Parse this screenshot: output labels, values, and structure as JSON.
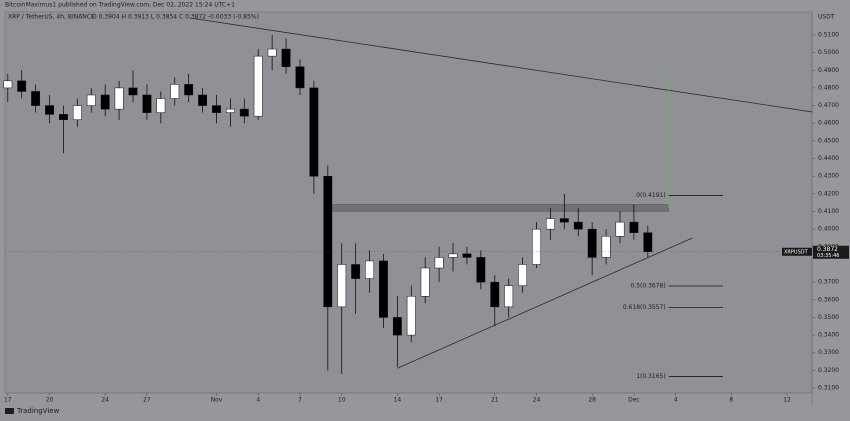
{
  "header": {
    "publisher": "BitcoinMaximus1 published on TradingView.com, Dec 02, 2022 15:24 UTC+1",
    "symbol": "XRP / TetherUS, 4h, BINANCE",
    "ohlc": "O 0.3904 H 0.3913 L 0.3854 C 0.3872 -0.0033 (-0.85%)"
  },
  "footer": {
    "logo": "TradingView"
  },
  "chart_data": {
    "type": "candlestick",
    "y_unit": "USDT",
    "x": [
      0,
      1,
      2,
      3,
      4,
      5,
      6,
      7,
      8,
      9,
      10,
      11,
      12,
      13,
      14,
      15,
      16,
      17,
      18,
      19,
      20,
      21,
      22,
      23,
      24,
      25,
      26,
      27,
      28,
      29,
      30,
      31,
      32,
      33,
      34,
      35,
      36,
      37,
      38,
      39,
      40,
      41,
      42,
      43,
      44,
      45,
      46
    ],
    "open": [
      0.48,
      0.484,
      0.478,
      0.47,
      0.465,
      0.462,
      0.47,
      0.476,
      0.468,
      0.48,
      0.476,
      0.466,
      0.474,
      0.482,
      0.476,
      0.47,
      0.466,
      0.468,
      0.464,
      0.498,
      0.502,
      0.492,
      0.48,
      0.43,
      0.356,
      0.38,
      0.372,
      0.382,
      0.35,
      0.34,
      0.362,
      0.378,
      0.384,
      0.386,
      0.384,
      0.37,
      0.356,
      0.368,
      0.38,
      0.4,
      0.406,
      0.404,
      0.4,
      0.384,
      0.396,
      0.404,
      0.398
    ],
    "high": [
      0.488,
      0.49,
      0.482,
      0.476,
      0.47,
      0.474,
      0.48,
      0.482,
      0.484,
      0.49,
      0.482,
      0.478,
      0.486,
      0.488,
      0.48,
      0.476,
      0.474,
      0.474,
      0.502,
      0.51,
      0.508,
      0.496,
      0.484,
      0.436,
      0.392,
      0.392,
      0.388,
      0.386,
      0.362,
      0.368,
      0.384,
      0.39,
      0.392,
      0.39,
      0.388,
      0.374,
      0.372,
      0.384,
      0.404,
      0.412,
      0.42,
      0.412,
      0.404,
      0.4,
      0.41,
      0.414,
      0.402
    ],
    "low": [
      0.472,
      0.474,
      0.466,
      0.46,
      0.443,
      0.458,
      0.466,
      0.464,
      0.462,
      0.472,
      0.462,
      0.46,
      0.47,
      0.472,
      0.466,
      0.46,
      0.458,
      0.46,
      0.462,
      0.49,
      0.488,
      0.476,
      0.42,
      0.32,
      0.318,
      0.352,
      0.364,
      0.344,
      0.322,
      0.336,
      0.358,
      0.37,
      0.376,
      0.38,
      0.366,
      0.345,
      0.35,
      0.364,
      0.378,
      0.394,
      0.4,
      0.396,
      0.374,
      0.38,
      0.392,
      0.394,
      0.384
    ],
    "close": [
      0.484,
      0.478,
      0.47,
      0.465,
      0.462,
      0.47,
      0.476,
      0.468,
      0.48,
      0.476,
      0.466,
      0.474,
      0.482,
      0.476,
      0.47,
      0.466,
      0.468,
      0.464,
      0.498,
      0.502,
      0.492,
      0.48,
      0.43,
      0.356,
      0.38,
      0.372,
      0.382,
      0.35,
      0.34,
      0.362,
      0.378,
      0.384,
      0.386,
      0.384,
      0.37,
      0.356,
      0.368,
      0.38,
      0.4,
      0.406,
      0.404,
      0.4,
      0.384,
      0.396,
      0.404,
      0.398,
      0.3872
    ],
    "up_color": "#ffffff",
    "down_color": "#000000",
    "xlim": [
      -0.2,
      57.8
    ],
    "xticks": [
      {
        "value": 0,
        "label": "17"
      },
      {
        "value": 3,
        "label": "20"
      },
      {
        "value": 7,
        "label": "24"
      },
      {
        "value": 10,
        "label": "27"
      },
      {
        "value": 15,
        "label": "Nov"
      },
      {
        "value": 18,
        "label": "4"
      },
      {
        "value": 21,
        "label": "7"
      },
      {
        "value": 24,
        "label": "10"
      },
      {
        "value": 28,
        "label": "14"
      },
      {
        "value": 31,
        "label": "17"
      },
      {
        "value": 35,
        "label": "21"
      },
      {
        "value": 38,
        "label": "24"
      },
      {
        "value": 42,
        "label": "28"
      },
      {
        "value": 45,
        "label": "Dec"
      },
      {
        "value": 48,
        "label": "4"
      },
      {
        "value": 52,
        "label": "8"
      },
      {
        "value": 56,
        "label": "12"
      }
    ],
    "ylim": [
      0.3072,
      0.523
    ],
    "yticks": [
      {
        "value": 0.51,
        "label": "0.5100"
      },
      {
        "value": 0.5,
        "label": "0.5000"
      },
      {
        "value": 0.49,
        "label": "0.4900"
      },
      {
        "value": 0.48,
        "label": "0.4800"
      },
      {
        "value": 0.47,
        "label": "0.4700"
      },
      {
        "value": 0.46,
        "label": "0.4600"
      },
      {
        "value": 0.45,
        "label": "0.4500"
      },
      {
        "value": 0.44,
        "label": "0.4400"
      },
      {
        "value": 0.43,
        "label": "0.4300"
      },
      {
        "value": 0.42,
        "label": "0.4200"
      },
      {
        "value": 0.41,
        "label": "0.4100"
      },
      {
        "value": 0.4,
        "label": "0.4000"
      },
      {
        "value": 0.39,
        "label": "0.3900"
      },
      {
        "value": 0.37,
        "label": "0.3700"
      },
      {
        "value": 0.36,
        "label": "0.3600"
      },
      {
        "value": 0.35,
        "label": "0.3500"
      },
      {
        "value": 0.34,
        "label": "0.3400"
      },
      {
        "value": 0.33,
        "label": "0.3300"
      },
      {
        "value": 0.32,
        "label": "0.3200"
      },
      {
        "value": 0.31,
        "label": "0.3100"
      }
    ],
    "last_price": {
      "symbol": "XRPUSDT",
      "value": 0.3872,
      "label": "0.3872",
      "countdown": "03:35:46",
      "color": "#1a1a1a"
    },
    "trendlines": [
      {
        "x": [
          13.1,
          57.8
        ],
        "y": [
          0.5196,
          0.4664
        ],
        "color": "#2b2b2b"
      },
      {
        "x": [
          28,
          49.2
        ],
        "y": [
          0.3212,
          0.395
        ],
        "color": "#2b2b2b"
      }
    ],
    "zone": {
      "x": [
        23,
        47.5
      ],
      "y": [
        0.41,
        0.414
      ],
      "color": "#6f7176"
    },
    "target": {
      "x": 47.5,
      "y": [
        0.412,
        0.488
      ],
      "color": "#57c23a"
    },
    "fib": {
      "x": [
        47.5,
        51.4
      ],
      "color": "#1a1a1a",
      "levels": [
        {
          "value": 0.4191,
          "label": "0(0.4191)"
        },
        {
          "value": 0.3678,
          "label": "0.5(0.3678)"
        },
        {
          "value": 0.3557,
          "label": "0.618(0.3557)"
        },
        {
          "value": 0.3165,
          "label": "1(0.3165)"
        }
      ]
    }
  }
}
